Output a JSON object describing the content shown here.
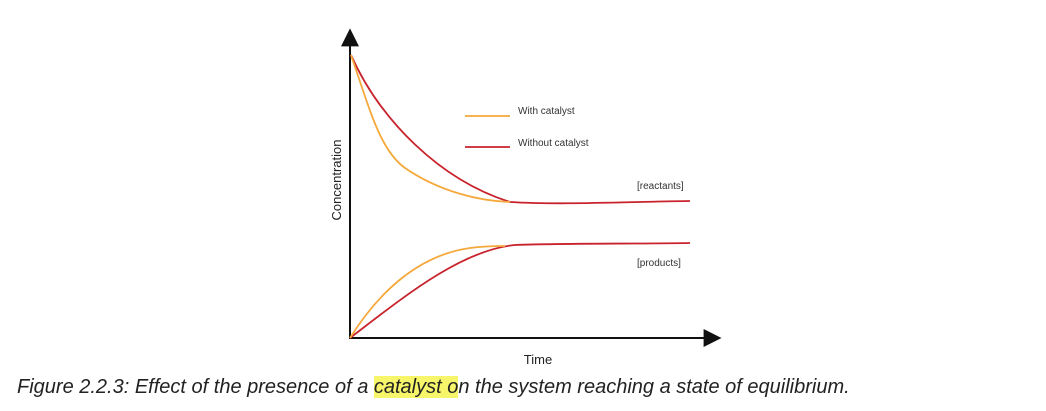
{
  "figure": {
    "y_axis_label": "Concentration",
    "x_axis_label": "Time",
    "legend": [
      "With catalyst",
      "Without catalyst"
    ],
    "curve_labels": {
      "reactants": "[reactants]",
      "products": "[products]"
    },
    "caption": {
      "before": "Figure 2.2.3: Effect of the presence of a ",
      "highlight": "catalyst o",
      "after": "n the system reaching a state of equilibrium."
    }
  }
}
